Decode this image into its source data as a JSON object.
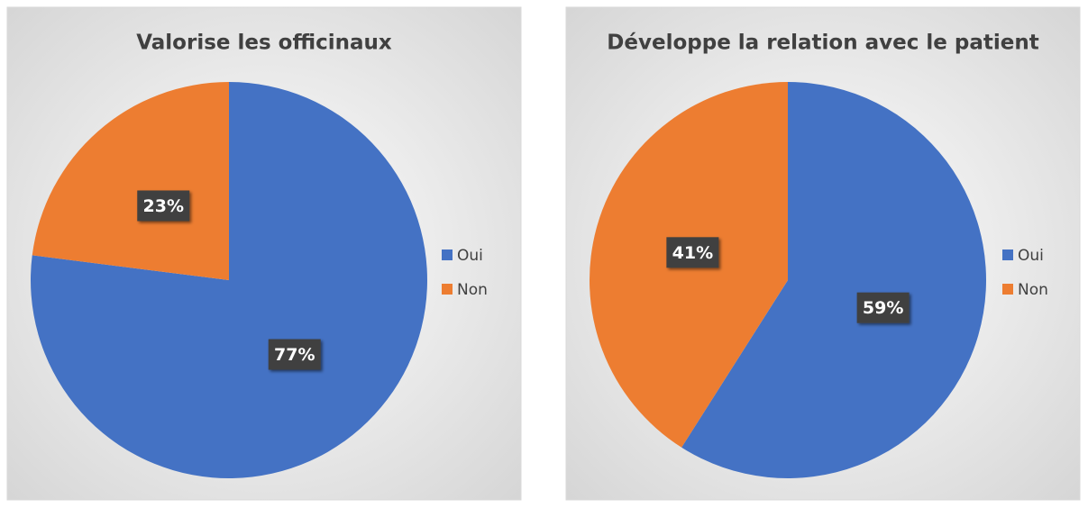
{
  "chart_data": [
    {
      "type": "pie",
      "title": "Valorise les officinaux",
      "categories": [
        "Oui",
        "Non"
      ],
      "values": [
        77,
        23
      ],
      "value_labels": [
        "77%",
        "23%"
      ],
      "colors": [
        "#4472c4",
        "#ed7d31"
      ],
      "legend": "right"
    },
    {
      "type": "pie",
      "title": "Développe la relation avec le patient",
      "categories": [
        "Oui",
        "Non"
      ],
      "values": [
        59,
        41
      ],
      "value_labels": [
        "59%",
        "41%"
      ],
      "colors": [
        "#4472c4",
        "#ed7d31"
      ],
      "legend": "right"
    }
  ]
}
